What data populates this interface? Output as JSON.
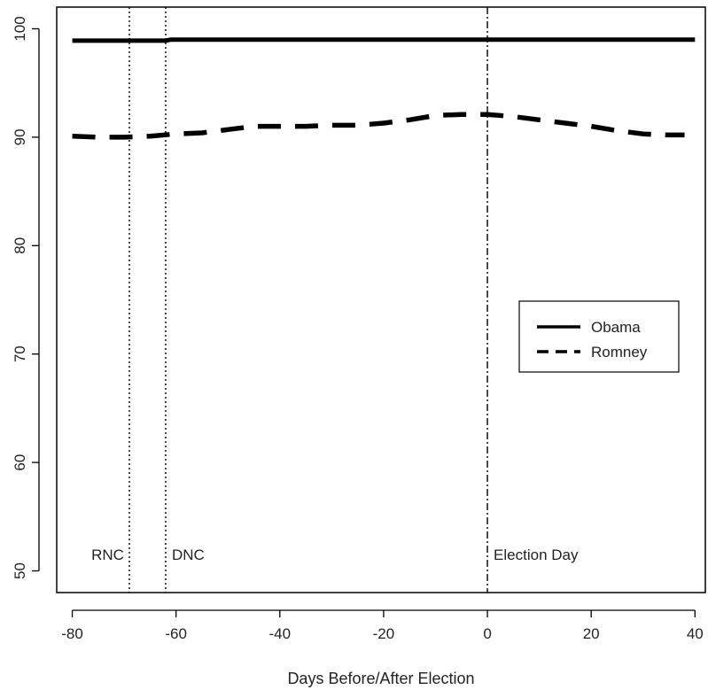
{
  "chart_data": {
    "type": "line",
    "title": "",
    "xlabel": "Days Before/After Election",
    "ylabel": "",
    "xlim": [
      -83,
      42
    ],
    "ylim": [
      48,
      102
    ],
    "xticks": [
      -80,
      -60,
      -40,
      -20,
      0,
      20,
      40
    ],
    "yticks": [
      50,
      60,
      70,
      80,
      90,
      100
    ],
    "grid": false,
    "legend": "right",
    "series": [
      {
        "name": "Obama",
        "style": "solid",
        "color": "#000000",
        "x": [
          -80,
          -62,
          -61,
          40
        ],
        "y": [
          98.9,
          98.9,
          99.0,
          99.0
        ]
      },
      {
        "name": "Romney",
        "style": "dashed",
        "color": "#000000",
        "x": [
          -80,
          -75,
          -70,
          -65,
          -60,
          -55,
          -50,
          -45,
          -40,
          -35,
          -30,
          -25,
          -20,
          -15,
          -10,
          -5,
          0,
          5,
          10,
          15,
          20,
          25,
          30,
          35,
          38
        ],
        "y": [
          90.1,
          90.0,
          90.0,
          90.1,
          90.3,
          90.4,
          90.7,
          91.0,
          91.0,
          91.0,
          91.1,
          91.1,
          91.3,
          91.6,
          92.0,
          92.1,
          92.1,
          91.9,
          91.6,
          91.3,
          91.0,
          90.6,
          90.3,
          90.2,
          90.2
        ]
      }
    ],
    "vlines": [
      {
        "x": -69,
        "label": "RNC",
        "style": "dotted",
        "label_side": "left"
      },
      {
        "x": -62,
        "label": "DNC",
        "style": "dotted",
        "label_side": "right"
      },
      {
        "x": 0,
        "label": "Election Day",
        "style": "dashdot",
        "label_side": "right"
      }
    ],
    "annotation_y": 51.5
  }
}
